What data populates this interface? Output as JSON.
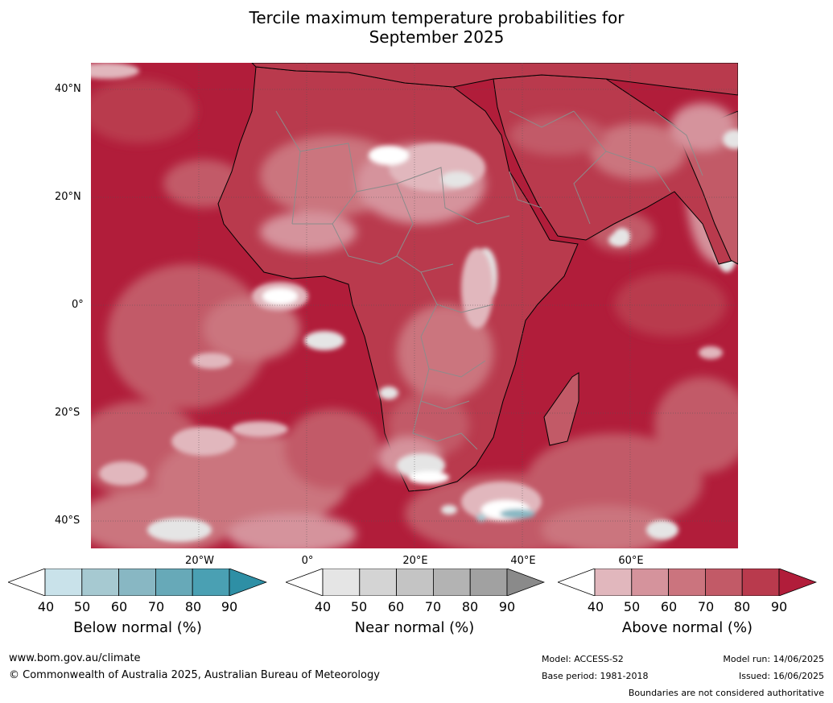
{
  "title": {
    "line1": "Tercile maximum temperature probabilities for",
    "line2": "September 2025"
  },
  "latitude_labels": [
    "40°N",
    "20°N",
    "0°",
    "20°S",
    "40°S"
  ],
  "longitude_labels": [
    "20°W",
    "0°",
    "20°E",
    "40°E",
    "60°E"
  ],
  "colorbars": [
    {
      "label": "Below normal (%)",
      "ticks": [
        "40",
        "50",
        "60",
        "70",
        "80",
        "90"
      ],
      "colors": [
        "#ffffff",
        "#c9e2ea",
        "#a6c9d1",
        "#88b7c3",
        "#67a9b8",
        "#4aa0b3",
        "#2e8fa5"
      ]
    },
    {
      "label": "Near normal (%)",
      "ticks": [
        "40",
        "50",
        "60",
        "70",
        "80",
        "90"
      ],
      "colors": [
        "#ffffff",
        "#e5e5e5",
        "#d4d4d4",
        "#c4c4c4",
        "#b3b3b3",
        "#a1a1a1",
        "#8a8a8a"
      ]
    },
    {
      "label": "Above normal (%)",
      "ticks": [
        "40",
        "50",
        "60",
        "70",
        "80",
        "90"
      ],
      "colors": [
        "#ffffff",
        "#e1b7bd",
        "#d5939c",
        "#cb747e",
        "#c25a67",
        "#b93a4d",
        "#b11d3a"
      ]
    }
  ],
  "footer": {
    "url": "www.bom.gov.au/climate",
    "copyright": "© Commonwealth of Australia 2025, Australian Bureau of Meteorology",
    "model": "Model: ACCESS-S2",
    "base_period": "Base period: 1981-2018",
    "model_run": "Model run: 14/06/2025",
    "issued": "Issued: 16/06/2025",
    "disclaimer": "Boundaries are not considered authoritative"
  },
  "map_colors": {
    "ocean_dominant": "#b11d3a",
    "land_dominant": "#b93a4d",
    "border_country": "#8c8c8c",
    "coastline": "#000000"
  }
}
